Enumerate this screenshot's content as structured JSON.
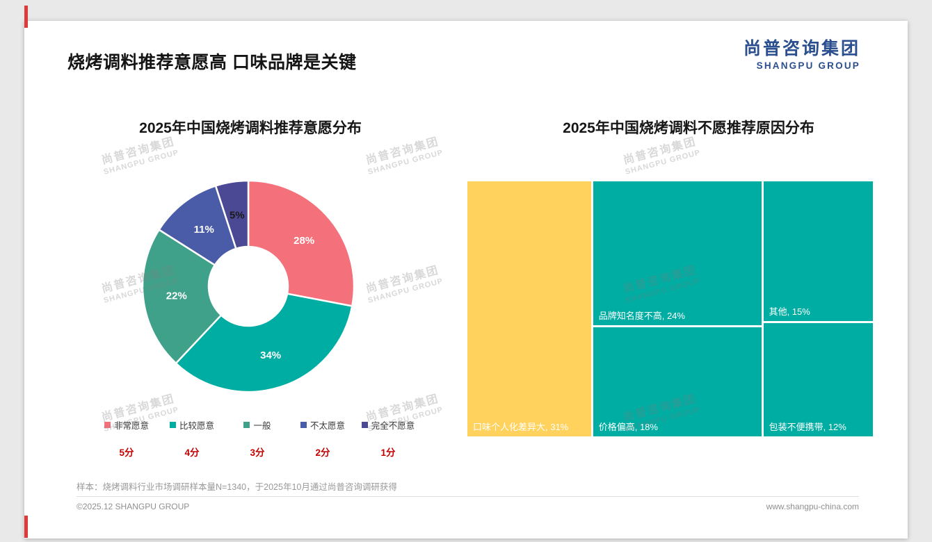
{
  "header": {
    "title": "烧烤调料推荐意愿高 口味品牌是关键",
    "logo_cn": "尚普咨询集团",
    "logo_en": "SHANGPU GROUP"
  },
  "watermark": {
    "cn": "尚普咨询集团",
    "en": "SHANGPU GROUP"
  },
  "colors": {
    "accent_red": "#DD3A3A",
    "logo_blue": "#2A4E8E",
    "score_red": "#C00000"
  },
  "chart_data": [
    {
      "type": "pie",
      "subtype": "donut",
      "title": "2025年中国烧烤调料推荐意愿分布",
      "categories": [
        "非常愿意",
        "比较愿意",
        "一般",
        "不太愿意",
        "完全不愿意"
      ],
      "values": [
        28,
        34,
        22,
        11,
        5
      ],
      "labels": [
        "28%",
        "34%",
        "22%",
        "11%",
        "5%"
      ],
      "colors": [
        "#F4717C",
        "#00ADA3",
        "#40A18B",
        "#4A5CA8",
        "#4B4894"
      ],
      "scores": [
        "5分",
        "4分",
        "3分",
        "2分",
        "1分"
      ],
      "legend_position": "bottom",
      "start_angle_deg": 0,
      "direction": "clockwise"
    },
    {
      "type": "treemap",
      "title": "2025年中国烧烤调料不愿推荐原因分布",
      "items": [
        {
          "label": "口味个人化差异大",
          "value": 31,
          "color": "#FFD25E"
        },
        {
          "label": "品牌知名度不高",
          "value": 24,
          "color": "#00ADA3"
        },
        {
          "label": "价格偏高",
          "value": 18,
          "color": "#00ADA3"
        },
        {
          "label": "其他",
          "value": 15,
          "color": "#00ADA3"
        },
        {
          "label": "包装不便携带",
          "value": 12,
          "color": "#00ADA3"
        }
      ],
      "label_format": "{label}, {value}%"
    }
  ],
  "footnote": "样本：烧烤调料行业市场调研样本量N=1340，于2025年10月通过尚普咨询调研获得",
  "footer": {
    "copyright": "©2025.12 SHANGPU GROUP",
    "website": "www.shangpu-china.com"
  }
}
